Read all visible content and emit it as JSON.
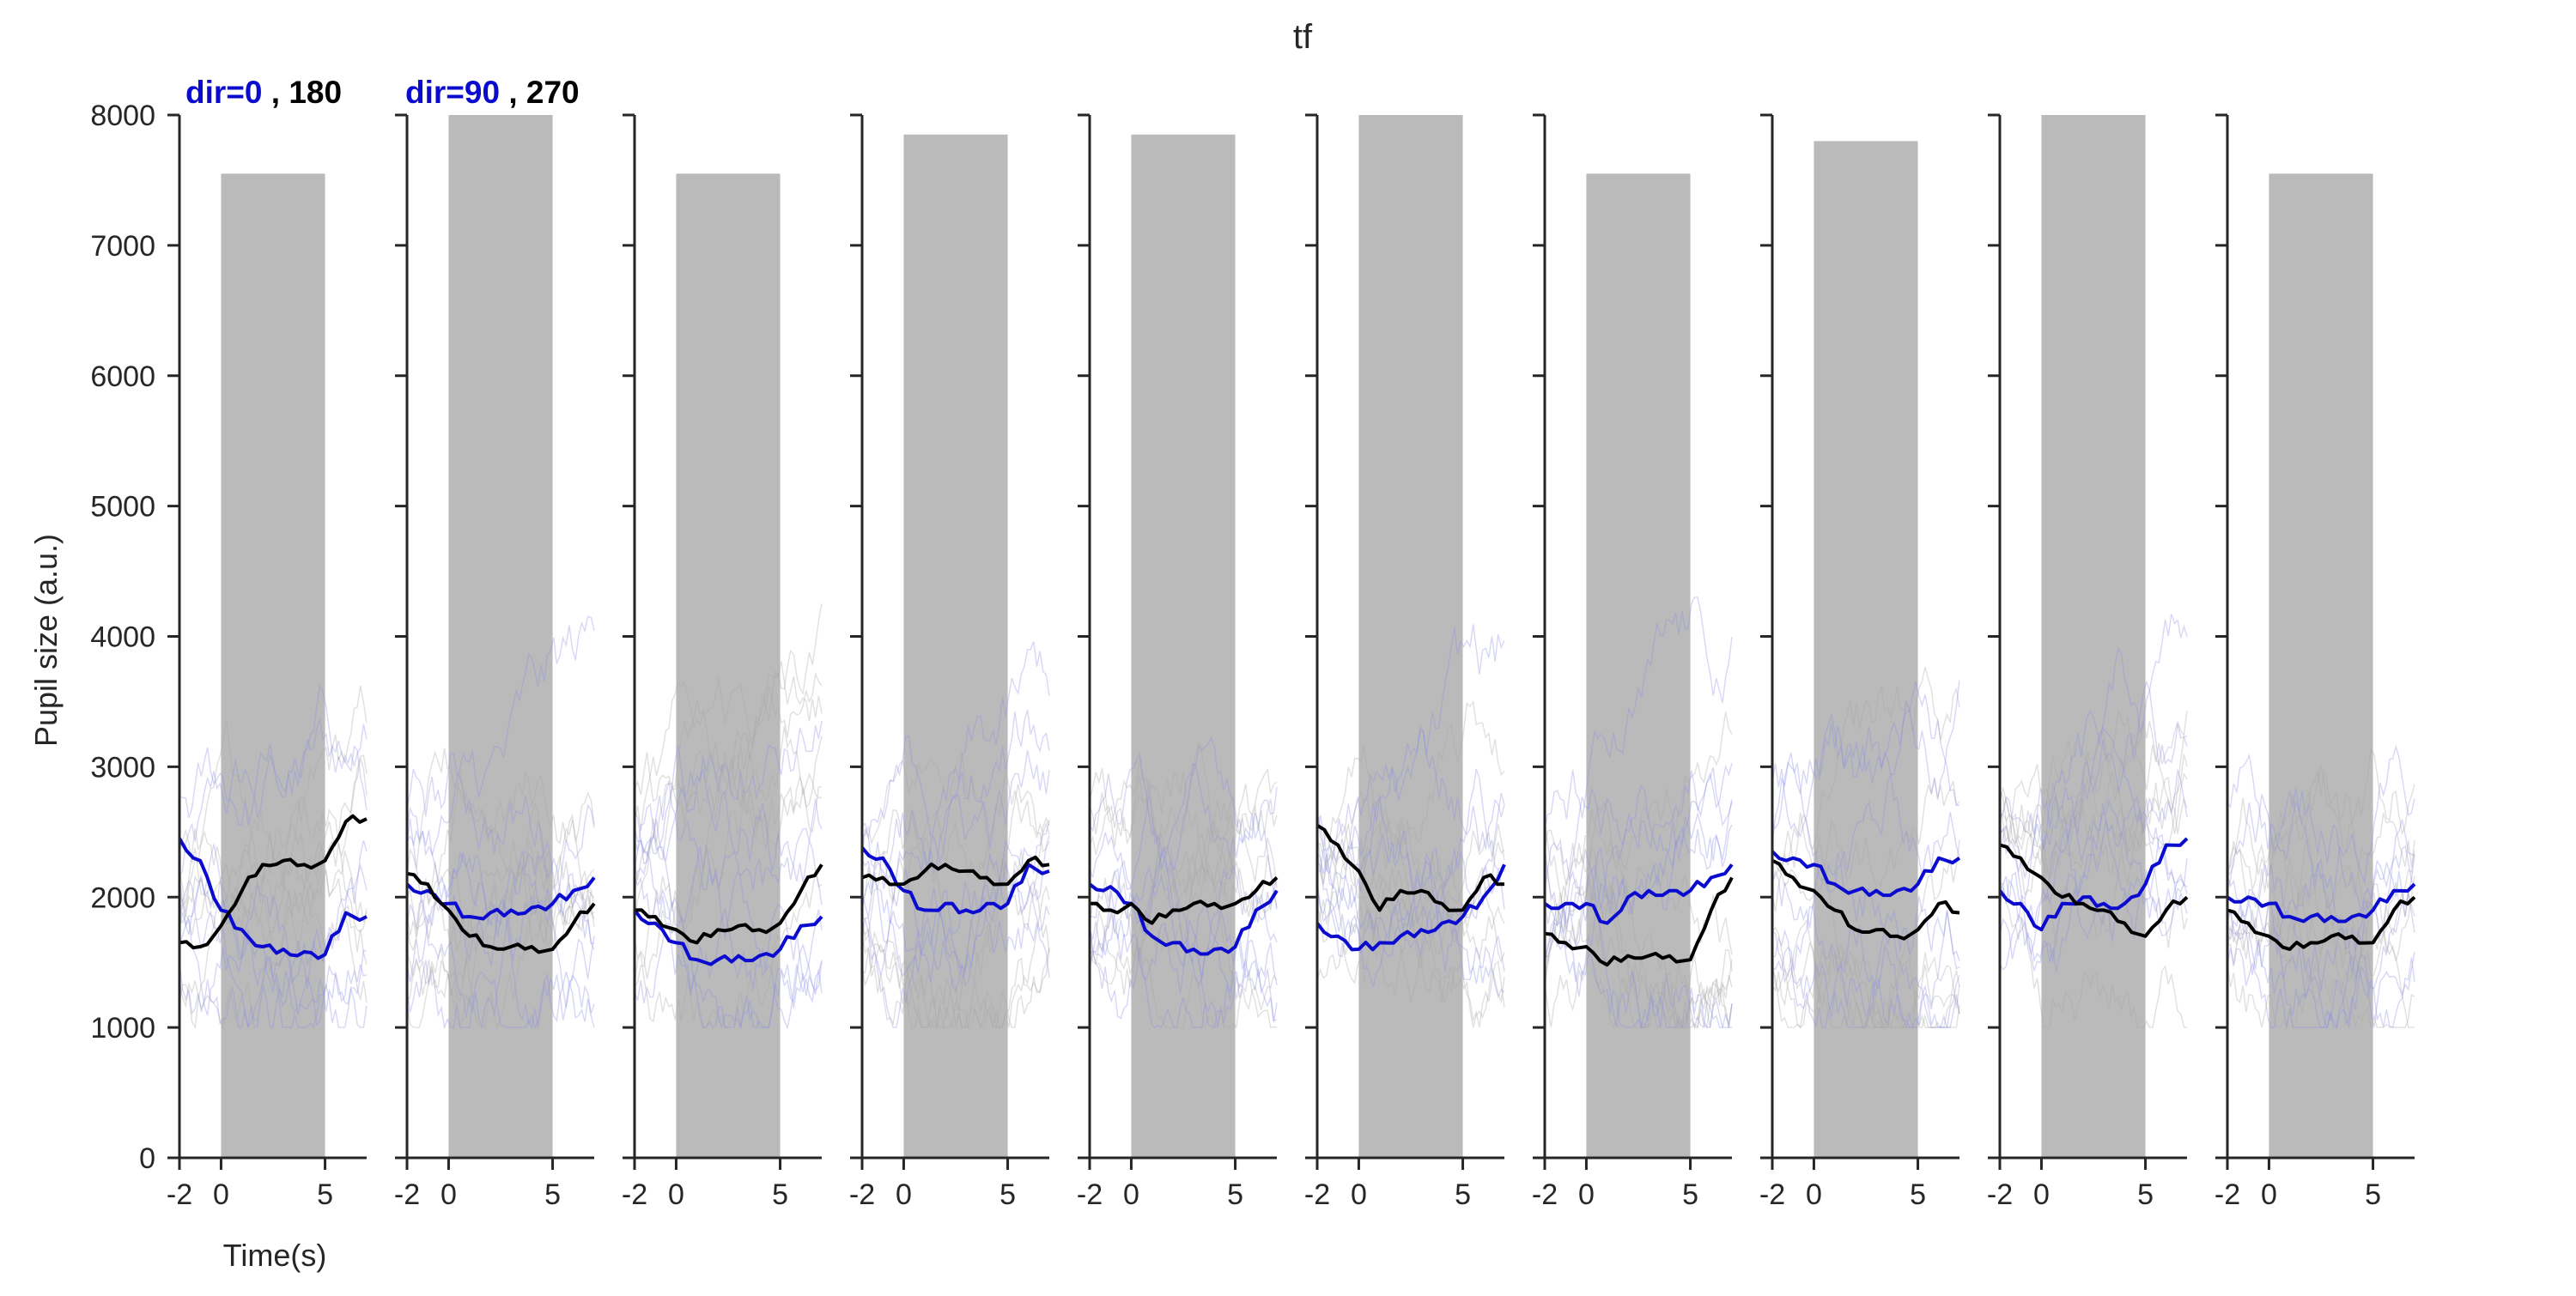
{
  "chart_data": {
    "type": "line",
    "title": "tf",
    "ylabel": "Pupil size (a.u.)",
    "xlabel": "Time(s)",
    "ylim": [
      0,
      8000
    ],
    "xlim": [
      -2,
      7
    ],
    "yticks": [
      0,
      1000,
      2000,
      3000,
      4000,
      5000,
      6000,
      7000,
      8000
    ],
    "xticks": [
      -2,
      0,
      5
    ],
    "stim_window": [
      0,
      5
    ],
    "legends": [
      {
        "label": "dir=0",
        "sep": " , ",
        "label2": "180"
      },
      {
        "label": "dir=90",
        "sep": " , ",
        "label2": "270"
      }
    ],
    "colors": {
      "series_a": "#0b0bd0",
      "series_b": "#000000",
      "stim_patch": "#bababa",
      "trial_a": "#8c8ce6",
      "trial_b": "#a6a6a6"
    },
    "panels": [
      {
        "stim_height": 7550,
        "series": [
          {
            "x": [
              -2,
              -1,
              0,
              1,
              2,
              3,
              4,
              5,
              6,
              7
            ],
            "values": [
              2450,
              2280,
              1900,
              1750,
              1620,
              1600,
              1580,
              1560,
              1880,
              1850
            ]
          },
          {
            "x": [
              -2,
              -1,
              0,
              1,
              2,
              3,
              4,
              5,
              6,
              7
            ],
            "values": [
              1650,
              1620,
              1780,
              2050,
              2250,
              2280,
              2250,
              2280,
              2580,
              2600
            ]
          }
        ]
      },
      {
        "stim_height": 8000,
        "series": [
          {
            "x": [
              -2,
              -1,
              0,
              1,
              2,
              3,
              4,
              5,
              6,
              7
            ],
            "values": [
              2100,
              2050,
              1950,
              1850,
              1880,
              1900,
              1920,
              1950,
              2050,
              2150
            ]
          },
          {
            "x": [
              -2,
              -1,
              0,
              1,
              2,
              3,
              4,
              5,
              6,
              7
            ],
            "values": [
              2180,
              2100,
              1900,
              1700,
              1620,
              1620,
              1620,
              1600,
              1800,
              1950
            ]
          }
        ]
      },
      {
        "stim_height": 7550,
        "series": [
          {
            "x": [
              -2,
              -1,
              0,
              1,
              2,
              3,
              4,
              5,
              6,
              7
            ],
            "values": [
              1900,
              1800,
              1650,
              1520,
              1520,
              1550,
              1550,
              1600,
              1780,
              1850
            ]
          },
          {
            "x": [
              -2,
              -1,
              0,
              1,
              2,
              3,
              4,
              5,
              6,
              7
            ],
            "values": [
              1900,
              1850,
              1750,
              1650,
              1750,
              1780,
              1750,
              1800,
              2050,
              2250
            ]
          }
        ]
      },
      {
        "stim_height": 7850,
        "series": [
          {
            "x": [
              -2,
              -1,
              0,
              1,
              2,
              3,
              4,
              5,
              6,
              7
            ],
            "values": [
              2380,
              2300,
              2050,
              1900,
              1950,
              1900,
              1950,
              1950,
              2250,
              2200
            ]
          },
          {
            "x": [
              -2,
              -1,
              0,
              1,
              2,
              3,
              4,
              5,
              6,
              7
            ],
            "values": [
              2150,
              2150,
              2100,
              2200,
              2250,
              2200,
              2150,
              2100,
              2280,
              2250
            ]
          }
        ]
      },
      {
        "stim_height": 7850,
        "series": [
          {
            "x": [
              -2,
              -1,
              0,
              1,
              2,
              3,
              4,
              5,
              6,
              7
            ],
            "values": [
              2100,
              2080,
              1950,
              1700,
              1650,
              1600,
              1600,
              1620,
              1900,
              2050
            ]
          },
          {
            "x": [
              -2,
              -1,
              0,
              1,
              2,
              3,
              4,
              5,
              6,
              7
            ],
            "values": [
              1950,
              1900,
              1950,
              1800,
              1900,
              1950,
              1950,
              1950,
              2050,
              2150
            ]
          }
        ]
      },
      {
        "stim_height": 8000,
        "series": [
          {
            "x": [
              -2,
              -1,
              0,
              1,
              2,
              3,
              4,
              5,
              6,
              7
            ],
            "values": [
              1800,
              1700,
              1600,
              1650,
              1700,
              1750,
              1800,
              1850,
              2000,
              2250
            ]
          },
          {
            "x": [
              -2,
              -1,
              0,
              1,
              2,
              3,
              4,
              5,
              6,
              7
            ],
            "values": [
              2550,
              2400,
              2200,
              1900,
              2050,
              2050,
              1950,
              1900,
              2150,
              2100
            ]
          }
        ]
      },
      {
        "stim_height": 7550,
        "series": [
          {
            "x": [
              -2,
              -1,
              0,
              1,
              2,
              3,
              4,
              5,
              6,
              7
            ],
            "values": [
              1950,
              1950,
              1950,
              1800,
              2000,
              2050,
              2050,
              2050,
              2150,
              2250
            ]
          },
          {
            "x": [
              -2,
              -1,
              0,
              1,
              2,
              3,
              4,
              5,
              6,
              7
            ],
            "values": [
              1720,
              1650,
              1620,
              1480,
              1550,
              1550,
              1550,
              1520,
              1900,
              2150
            ]
          }
        ]
      },
      {
        "stim_height": 7800,
        "series": [
          {
            "x": [
              -2,
              -1,
              0,
              1,
              2,
              3,
              4,
              5,
              6,
              7
            ],
            "values": [
              2350,
              2300,
              2250,
              2100,
              2050,
              2050,
              2050,
              2100,
              2300,
              2300
            ]
          },
          {
            "x": [
              -2,
              -1,
              0,
              1,
              2,
              3,
              4,
              5,
              6,
              7
            ],
            "values": [
              2280,
              2150,
              2050,
              1900,
              1750,
              1750,
              1700,
              1750,
              1950,
              1880
            ]
          }
        ]
      },
      {
        "stim_height": 8000,
        "series": [
          {
            "x": [
              -2,
              -1,
              0,
              1,
              2,
              3,
              4,
              5,
              6,
              7
            ],
            "values": [
              2050,
              1950,
              1750,
              1950,
              2000,
              1950,
              1950,
              2100,
              2400,
              2450
            ]
          },
          {
            "x": [
              -2,
              -1,
              0,
              1,
              2,
              3,
              4,
              5,
              6,
              7
            ],
            "values": [
              2400,
              2300,
              2150,
              2000,
              1950,
              1900,
              1800,
              1700,
              1900,
              2000
            ]
          }
        ]
      },
      {
        "stim_height": 7550,
        "series": [
          {
            "x": [
              -2,
              -1,
              0,
              1,
              2,
              3,
              4,
              5,
              6,
              7
            ],
            "values": [
              2000,
              2000,
              1950,
              1850,
              1850,
              1850,
              1850,
              1900,
              2050,
              2100
            ]
          },
          {
            "x": [
              -2,
              -1,
              0,
              1,
              2,
              3,
              4,
              5,
              6,
              7
            ],
            "values": [
              1900,
              1800,
              1700,
              1600,
              1650,
              1700,
              1700,
              1650,
              1900,
              2000
            ]
          }
        ]
      }
    ]
  }
}
